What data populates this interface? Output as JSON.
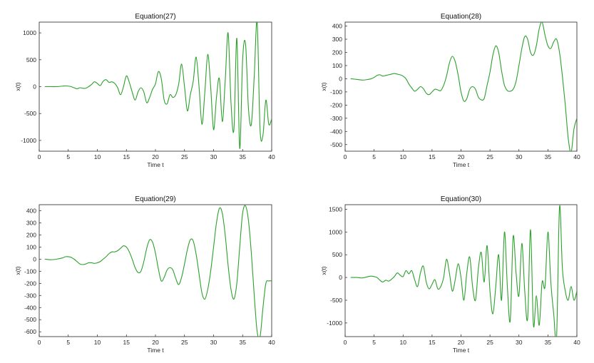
{
  "colors": {
    "series": "#2ca02c",
    "axis": "#262626"
  },
  "chart_data": [
    {
      "type": "line",
      "title": "Equation(27)",
      "xlabel": "Time t",
      "ylabel": "x(t)",
      "xlim": [
        0,
        40
      ],
      "ylim": [
        -1200,
        1200
      ],
      "xticks": [
        0,
        5,
        10,
        15,
        20,
        25,
        30,
        35,
        40
      ],
      "yticks": [
        -1000,
        -500,
        0,
        500,
        1000
      ],
      "grid": false,
      "series": [
        {
          "x": [
            1,
            2,
            3,
            4,
            4.5,
            5,
            5.5,
            6,
            6.5,
            7,
            7.5,
            8,
            8.5,
            9,
            9.5,
            10,
            10.5,
            11,
            11.5,
            12,
            12.5,
            13,
            13.5,
            14,
            14.5,
            15,
            15.5,
            16,
            16.5,
            17,
            17.5,
            18,
            18.5,
            19,
            19.5,
            20,
            20.5,
            21,
            21.5,
            22,
            22.5,
            23,
            23.5,
            24,
            24.5,
            25,
            25.5,
            26,
            26.5,
            27,
            27.5,
            28,
            28.5,
            29,
            29.5,
            30,
            30.5,
            31,
            31.5,
            32,
            32.5,
            33,
            33.5,
            34,
            34.5,
            35,
            35.5,
            36,
            36.5,
            37,
            37.5,
            38,
            38.5,
            39,
            39.5,
            40
          ],
          "y": [
            0,
            0,
            0,
            10,
            15,
            10,
            0,
            -20,
            -40,
            -20,
            -30,
            -30,
            0,
            40,
            90,
            60,
            20,
            100,
            130,
            80,
            90,
            60,
            -20,
            -150,
            0,
            200,
            80,
            -100,
            -250,
            -100,
            -20,
            -100,
            -300,
            -200,
            -50,
            50,
            280,
            150,
            -250,
            -320,
            -150,
            -200,
            -150,
            50,
            420,
            0,
            -450,
            -150,
            100,
            550,
            0,
            -700,
            -100,
            600,
            0,
            -800,
            -200,
            150,
            -650,
            100,
            1000,
            -300,
            -800,
            900,
            -1150,
            500,
            800,
            -400,
            -700,
            200,
            1200,
            -800,
            -900,
            -250,
            -700,
            -600
          ]
        }
      ]
    },
    {
      "type": "line",
      "title": "Equation(28)",
      "xlabel": "Time t",
      "ylabel": "x(t)",
      "xlim": [
        0,
        40
      ],
      "ylim": [
        -550,
        430
      ],
      "xticks": [
        0,
        5,
        10,
        15,
        20,
        25,
        30,
        35,
        40
      ],
      "yticks": [
        -500,
        -400,
        -300,
        -200,
        -100,
        0,
        100,
        200,
        300,
        400
      ],
      "grid": false,
      "series": [
        {
          "x": [
            1,
            2,
            3,
            4,
            4.5,
            5,
            5.5,
            6,
            6.5,
            7,
            7.5,
            8,
            8.5,
            9,
            9.5,
            10,
            10.5,
            11,
            11.5,
            12,
            12.5,
            13,
            13.5,
            14,
            14.5,
            15,
            15.5,
            16,
            16.5,
            17,
            17.5,
            18,
            18.5,
            19,
            19.5,
            20,
            20.5,
            21,
            21.5,
            22,
            22.5,
            23,
            23.5,
            24,
            24.5,
            25,
            25.5,
            26,
            26.5,
            27,
            27.5,
            28,
            28.5,
            29,
            29.5,
            30,
            30.5,
            31,
            31.5,
            32,
            32.5,
            33,
            33.5,
            34,
            34.5,
            35,
            35.5,
            36,
            36.5,
            37,
            37.5,
            38,
            38.5,
            39,
            39.5,
            40
          ],
          "y": [
            0,
            -5,
            -10,
            -5,
            0,
            10,
            25,
            30,
            20,
            25,
            30,
            35,
            40,
            35,
            30,
            20,
            0,
            -40,
            -70,
            -95,
            -80,
            -60,
            -75,
            -110,
            -120,
            -100,
            -80,
            -85,
            -90,
            -50,
            20,
            120,
            170,
            130,
            30,
            -100,
            -170,
            -150,
            -80,
            -60,
            -80,
            -140,
            -160,
            -150,
            -50,
            50,
            180,
            250,
            200,
            60,
            -50,
            -90,
            -95,
            -80,
            -20,
            100,
            230,
            320,
            300,
            200,
            180,
            250,
            380,
            430,
            330,
            250,
            230,
            280,
            300,
            200,
            20,
            -200,
            -450,
            -560,
            -380,
            -300
          ]
        }
      ]
    },
    {
      "type": "line",
      "title": "Equation(29)",
      "xlabel": "Time t",
      "ylabel": "x(t)",
      "xlim": [
        0,
        40
      ],
      "ylim": [
        -640,
        450
      ],
      "xticks": [
        0,
        5,
        10,
        15,
        20,
        25,
        30,
        35,
        40
      ],
      "yticks": [
        -600,
        -500,
        -400,
        -300,
        -200,
        -100,
        0,
        100,
        200,
        300,
        400
      ],
      "grid": false,
      "series": [
        {
          "x": [
            1,
            2,
            3,
            4,
            4.5,
            5,
            5.5,
            6,
            6.5,
            7,
            7.5,
            8,
            8.5,
            9,
            9.5,
            10,
            10.5,
            11,
            11.5,
            12,
            12.5,
            13,
            13.5,
            14,
            14.5,
            15,
            15.5,
            16,
            16.5,
            17,
            17.5,
            18,
            18.5,
            19,
            19.5,
            20,
            20.5,
            21,
            21.5,
            22,
            22.5,
            23,
            23.5,
            24,
            24.5,
            25,
            25.5,
            26,
            26.5,
            27,
            27.5,
            28,
            28.5,
            29,
            29.5,
            30,
            30.5,
            31,
            31.5,
            32,
            32.5,
            33,
            33.5,
            34,
            34.5,
            35,
            35.5,
            36,
            36.5,
            37,
            37.5,
            38,
            38.5,
            39,
            39.5,
            40
          ],
          "y": [
            0,
            -5,
            0,
            10,
            20,
            20,
            15,
            0,
            -20,
            -40,
            -45,
            -40,
            -30,
            -30,
            -35,
            -30,
            -20,
            0,
            20,
            45,
            60,
            60,
            70,
            90,
            110,
            100,
            60,
            0,
            -70,
            -110,
            -100,
            -20,
            90,
            160,
            140,
            50,
            -80,
            -180,
            -150,
            -90,
            -70,
            -90,
            -160,
            -210,
            -150,
            -40,
            80,
            160,
            150,
            40,
            -120,
            -280,
            -330,
            -250,
            -100,
            100,
            300,
            420,
            380,
            200,
            -50,
            -250,
            -330,
            -200,
            100,
            380,
            440,
            320,
            50,
            -300,
            -600,
            -640,
            -400,
            -200,
            -180,
            -180
          ]
        }
      ]
    },
    {
      "type": "line",
      "title": "Equation(30)",
      "xlabel": "Time t",
      "ylabel": "x(t)",
      "xlim": [
        0,
        40
      ],
      "ylim": [
        -1300,
        1600
      ],
      "xticks": [
        0,
        5,
        10,
        15,
        20,
        25,
        30,
        35,
        40
      ],
      "yticks": [
        -1000,
        -500,
        0,
        500,
        1000,
        1500
      ],
      "grid": false,
      "series": [
        {
          "x": [
            1,
            2,
            3,
            4,
            4.5,
            5,
            5.5,
            6,
            6.5,
            7,
            7.5,
            8,
            8.5,
            9,
            9.5,
            10,
            10.5,
            11,
            11.5,
            12,
            12.5,
            13,
            13.5,
            14,
            14.5,
            15,
            15.5,
            16,
            16.5,
            17,
            17.5,
            18,
            18.5,
            19,
            19.5,
            20,
            20.5,
            21,
            21.5,
            22,
            22.5,
            23,
            23.5,
            24,
            24.5,
            25,
            25.5,
            26,
            26.5,
            27,
            27.5,
            28,
            28.5,
            29,
            29.5,
            30,
            30.5,
            31,
            31.5,
            32,
            32.5,
            33,
            33.5,
            34,
            34.5,
            35,
            35.5,
            36,
            36.5,
            37,
            37.5,
            38,
            38.5,
            39,
            39.5,
            40
          ],
          "y": [
            0,
            0,
            -10,
            20,
            30,
            20,
            0,
            -60,
            -100,
            -60,
            -80,
            -40,
            20,
            100,
            50,
            20,
            150,
            80,
            150,
            -50,
            -200,
            100,
            250,
            -100,
            -250,
            -150,
            -50,
            -250,
            -200,
            0,
            400,
            100,
            -300,
            -50,
            300,
            0,
            -500,
            100,
            450,
            -200,
            -500,
            200,
            550,
            -100,
            700,
            -300,
            -800,
            -200,
            500,
            -500,
            1000,
            -200,
            -950,
            900,
            100,
            -400,
            750,
            -300,
            -900,
            1050,
            -1050,
            -400,
            -1050,
            -100,
            -200,
            1000,
            -100,
            -800,
            -1300,
            1550,
            200,
            -300,
            -500,
            -200,
            -500,
            -300
          ]
        }
      ]
    }
  ]
}
